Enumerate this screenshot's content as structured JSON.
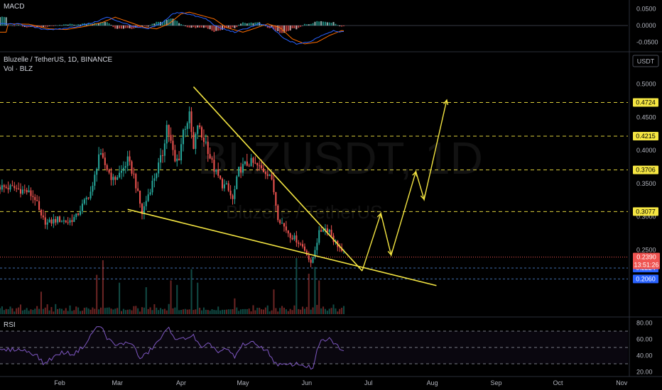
{
  "header": {
    "symbol_line": "Bluzelle / TetherUS, 1D, BINANCE",
    "volume_label": "Vol · BLZ",
    "currency_badge": "USDT",
    "watermark_ticker": "BLZUSDT, 1D",
    "watermark_name": "Bluzelle / TetherUS"
  },
  "colors": {
    "background": "#000000",
    "up": "#26a69a",
    "down": "#ef5350",
    "annotation": "#f5e642",
    "macd_line": "#2962ff",
    "signal_line": "#ff6d00",
    "rsi_line": "#7e57c2",
    "price_tag": "#ef5350",
    "level_tag": "#2962ff"
  },
  "x_axis": {
    "labels": [
      {
        "label": "Feb",
        "day": 31
      },
      {
        "label": "Mar",
        "day": 59
      },
      {
        "label": "Apr",
        "day": 90
      },
      {
        "label": "May",
        "day": 120
      },
      {
        "label": "Jun",
        "day": 151
      },
      {
        "label": "Jul",
        "day": 181
      },
      {
        "label": "Aug",
        "day": 212
      },
      {
        "label": "Sep",
        "day": 243
      },
      {
        "label": "Oct",
        "day": 273
      },
      {
        "label": "Nov",
        "day": 304
      }
    ],
    "domain_days": [
      2,
      307
    ]
  },
  "macd_pane": {
    "title": "MACD",
    "ticks": [
      "0.0500",
      "0.0000",
      "-0.0500"
    ],
    "tick_values": [
      0.05,
      0,
      -0.05
    ],
    "ylim": [
      -0.068,
      0.068
    ]
  },
  "rsi_pane": {
    "title": "RSI",
    "ticks": [
      "80.00",
      "60.00",
      "40.00",
      "20.00"
    ],
    "tick_values": [
      80,
      60,
      40,
      20
    ],
    "ylim": [
      17,
      83
    ],
    "bands": [
      70,
      50,
      30
    ]
  },
  "chart_data": {
    "type": "candlestick",
    "price_ticks": [
      "0.5000",
      "0.4500",
      "0.4000",
      "0.3500",
      "0.3000",
      "0.2500"
    ],
    "price_tick_values": [
      0.5,
      0.45,
      0.4,
      0.35,
      0.3,
      0.25
    ],
    "ylim": [
      0.185,
      0.52
    ],
    "current_price": {
      "value": 0.239,
      "label": "0.2390",
      "countdown": "13:51:26"
    },
    "levels": [
      {
        "value": 0.4724,
        "label": "0.4724",
        "style": "target"
      },
      {
        "value": 0.4215,
        "label": "0.4215",
        "style": "target"
      },
      {
        "value": 0.3706,
        "label": "0.3706",
        "style": "target"
      },
      {
        "value": 0.3077,
        "label": "0.3077",
        "style": "target"
      },
      {
        "value": 0.2224,
        "label": "0.2224",
        "style": "support"
      },
      {
        "value": 0.206,
        "label": "0.2060",
        "style": "support"
      }
    ],
    "candle_series": {
      "start_day": 2,
      "anchors": [
        [
          2,
          0.345
        ],
        [
          10,
          0.343
        ],
        [
          16,
          0.338
        ],
        [
          20,
          0.328
        ],
        [
          23,
          0.298
        ],
        [
          26,
          0.29
        ],
        [
          31,
          0.296
        ],
        [
          36,
          0.292
        ],
        [
          40,
          0.3
        ],
        [
          44,
          0.322
        ],
        [
          48,
          0.343
        ],
        [
          51,
          0.395
        ],
        [
          54,
          0.378
        ],
        [
          58,
          0.355
        ],
        [
          62,
          0.368
        ],
        [
          65,
          0.385
        ],
        [
          68,
          0.362
        ],
        [
          72,
          0.305
        ],
        [
          75,
          0.334
        ],
        [
          78,
          0.36
        ],
        [
          82,
          0.395
        ],
        [
          84,
          0.438
        ],
        [
          86,
          0.412
        ],
        [
          88,
          0.382
        ],
        [
          90,
          0.39
        ],
        [
          92,
          0.43
        ],
        [
          95,
          0.452
        ],
        [
          97,
          0.4
        ],
        [
          99,
          0.44
        ],
        [
          101,
          0.42
        ],
        [
          103,
          0.412
        ],
        [
          105,
          0.39
        ],
        [
          107,
          0.372
        ],
        [
          109,
          0.36
        ],
        [
          111,
          0.348
        ],
        [
          113,
          0.345
        ],
        [
          116,
          0.325
        ],
        [
          119,
          0.37
        ],
        [
          122,
          0.378
        ],
        [
          125,
          0.382
        ],
        [
          128,
          0.376
        ],
        [
          131,
          0.37
        ],
        [
          134,
          0.365
        ],
        [
          136,
          0.338
        ],
        [
          138,
          0.3
        ],
        [
          141,
          0.285
        ],
        [
          144,
          0.272
        ],
        [
          147,
          0.265
        ],
        [
          150,
          0.255
        ],
        [
          152,
          0.245
        ],
        [
          154,
          0.227
        ],
        [
          156,
          0.252
        ],
        [
          158,
          0.275
        ],
        [
          160,
          0.283
        ],
        [
          163,
          0.28
        ],
        [
          165,
          0.265
        ],
        [
          168,
          0.253
        ],
        [
          169,
          0.245
        ]
      ],
      "count": 168
    },
    "volume_series": {
      "base": [
        4,
        5,
        3,
        6,
        4,
        5,
        4,
        3,
        5,
        4,
        6,
        3,
        4,
        5,
        4,
        3,
        4,
        5,
        6,
        4,
        3,
        5,
        4,
        6
      ],
      "spikes": [
        [
          22,
          20
        ],
        [
          49,
          35
        ],
        [
          52,
          48
        ],
        [
          60,
          28
        ],
        [
          73,
          24
        ],
        [
          85,
          30
        ],
        [
          88,
          26
        ],
        [
          95,
          40
        ],
        [
          98,
          28
        ],
        [
          116,
          14
        ],
        [
          135,
          22
        ],
        [
          146,
          50
        ],
        [
          152,
          36
        ],
        [
          155,
          42
        ],
        [
          157,
          30
        ]
      ],
      "max": 60
    },
    "macd_series": {
      "anchors": [
        [
          2,
          0.005
        ],
        [
          12,
          0.004
        ],
        [
          22,
          -0.01
        ],
        [
          30,
          -0.012
        ],
        [
          40,
          -0.002
        ],
        [
          48,
          0.01
        ],
        [
          54,
          0.025
        ],
        [
          60,
          0.012
        ],
        [
          68,
          -0.005
        ],
        [
          74,
          -0.01
        ],
        [
          80,
          0.005
        ],
        [
          86,
          0.035
        ],
        [
          90,
          0.04
        ],
        [
          96,
          0.03
        ],
        [
          102,
          0.02
        ],
        [
          108,
          -0.006
        ],
        [
          116,
          -0.02
        ],
        [
          122,
          -0.008
        ],
        [
          128,
          0.005
        ],
        [
          134,
          -0.006
        ],
        [
          140,
          -0.04
        ],
        [
          146,
          -0.055
        ],
        [
          152,
          -0.05
        ],
        [
          158,
          -0.03
        ],
        [
          164,
          -0.015
        ],
        [
          169,
          -0.02
        ]
      ],
      "signal_lag": 4
    },
    "rsi_series": {
      "anchors": [
        [
          2,
          46
        ],
        [
          10,
          48
        ],
        [
          16,
          45
        ],
        [
          20,
          40
        ],
        [
          23,
          30
        ],
        [
          26,
          35
        ],
        [
          32,
          44
        ],
        [
          38,
          42
        ],
        [
          44,
          55
        ],
        [
          48,
          73
        ],
        [
          51,
          76
        ],
        [
          54,
          62
        ],
        [
          58,
          52
        ],
        [
          62,
          55
        ],
        [
          66,
          56
        ],
        [
          70,
          36
        ],
        [
          74,
          44
        ],
        [
          78,
          55
        ],
        [
          84,
          74
        ],
        [
          88,
          58
        ],
        [
          92,
          62
        ],
        [
          96,
          64
        ],
        [
          100,
          48
        ],
        [
          104,
          55
        ],
        [
          108,
          44
        ],
        [
          112,
          48
        ],
        [
          116,
          38
        ],
        [
          120,
          54
        ],
        [
          124,
          56
        ],
        [
          128,
          52
        ],
        [
          132,
          45
        ],
        [
          136,
          30
        ],
        [
          140,
          28
        ],
        [
          146,
          30
        ],
        [
          150,
          28
        ],
        [
          154,
          24
        ],
        [
          156,
          45
        ],
        [
          158,
          58
        ],
        [
          162,
          60
        ],
        [
          166,
          52
        ],
        [
          169,
          44
        ]
      ]
    },
    "annotations": {
      "wedge_upper": [
        [
          96,
          0.496
        ],
        [
          178,
          0.218
        ]
      ],
      "wedge_lower": [
        [
          64,
          0.311
        ],
        [
          214,
          0.196
        ]
      ],
      "projection_path": [
        [
          178,
          0.219
        ],
        [
          187,
          0.305
        ],
        [
          192,
          0.242
        ],
        [
          204,
          0.368
        ],
        [
          208,
          0.326
        ],
        [
          219,
          0.476
        ]
      ]
    }
  }
}
